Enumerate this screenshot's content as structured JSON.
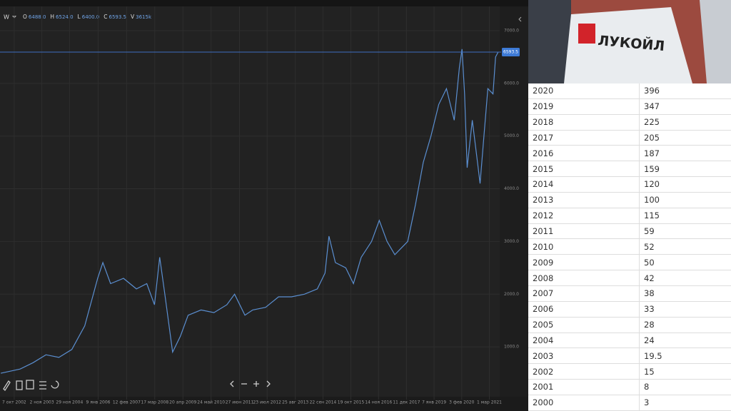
{
  "chart_data": {
    "type": "line",
    "legend": {
      "symbol": "W",
      "items": [
        {
          "key": "O",
          "value": "6488.0"
        },
        {
          "key": "H",
          "value": "6524.0"
        },
        {
          "key": "L",
          "value": "6400.0"
        },
        {
          "key": "C",
          "value": "6593.5"
        },
        {
          "key": "V",
          "value": "3615k"
        }
      ]
    },
    "price_label": {
      "value": 6593.5,
      "label": "6593.5"
    },
    "xlim": [
      2002.22,
      2021.56
    ],
    "ylim": [
      0,
      7460
    ],
    "xticks": [
      {
        "value": 2002.77,
        "label": "7 окт 2002"
      },
      {
        "value": 2003.84,
        "label": "2 ноя 2003"
      },
      {
        "value": 2004.91,
        "label": "29 ноя 2004"
      },
      {
        "value": 2006.02,
        "label": "9 янв 2006"
      },
      {
        "value": 2007.12,
        "label": "12 фев 2007"
      },
      {
        "value": 2008.21,
        "label": "17 мар 2008"
      },
      {
        "value": 2009.3,
        "label": "20 апр 2009"
      },
      {
        "value": 2010.39,
        "label": "24 май 2010"
      },
      {
        "value": 2011.49,
        "label": "27 июн 2011"
      },
      {
        "value": 2012.56,
        "label": "23 июл 2012"
      },
      {
        "value": 2013.65,
        "label": "25 авг 2013"
      },
      {
        "value": 2014.72,
        "label": "22 сен 2014"
      },
      {
        "value": 2015.8,
        "label": "19 окт 2015"
      },
      {
        "value": 2016.87,
        "label": "14 ноя 2016"
      },
      {
        "value": 2017.95,
        "label": "11 дек 2017"
      },
      {
        "value": 2019.02,
        "label": "7 янв 2019"
      },
      {
        "value": 2020.09,
        "label": "3 фев 2020"
      },
      {
        "value": 2021.16,
        "label": "1 мар 2021"
      }
    ],
    "yticks": [
      {
        "value": 1000,
        "label": "1000.0"
      },
      {
        "value": 2000,
        "label": "2000.0"
      },
      {
        "value": 3000,
        "label": "3000.0"
      },
      {
        "value": 4000,
        "label": "4000.0"
      },
      {
        "value": 5000,
        "label": "5000.0"
      },
      {
        "value": 6000,
        "label": "6000.0"
      },
      {
        "value": 7000,
        "label": "7000.0"
      }
    ],
    "grid": true,
    "color": "#5b8fd1",
    "x": [
      2002.25,
      2003.0,
      2003.5,
      2004.0,
      2004.5,
      2005.0,
      2005.5,
      2006.0,
      2006.2,
      2006.5,
      2007.0,
      2007.5,
      2007.9,
      2008.2,
      2008.4,
      2008.6,
      2008.9,
      2009.2,
      2009.5,
      2010.0,
      2010.5,
      2011.0,
      2011.3,
      2011.7,
      2012.0,
      2012.5,
      2013.0,
      2013.5,
      2014.0,
      2014.5,
      2014.8,
      2014.95,
      2015.2,
      2015.6,
      2015.9,
      2016.2,
      2016.6,
      2016.9,
      2017.2,
      2017.5,
      2018.0,
      2018.3,
      2018.6,
      2018.9,
      2019.2,
      2019.5,
      2019.8,
      2020.0,
      2020.1,
      2020.2,
      2020.3,
      2020.5,
      2020.7,
      2020.8,
      2020.95,
      2021.1,
      2021.3,
      2021.4,
      2021.5
    ],
    "values": [
      500,
      580,
      700,
      850,
      800,
      950,
      1400,
      2300,
      2600,
      2200,
      2300,
      2100,
      2200,
      1800,
      2700,
      2000,
      900,
      1200,
      1600,
      1700,
      1650,
      1800,
      2000,
      1600,
      1700,
      1750,
      1950,
      1950,
      2000,
      2100,
      2400,
      3100,
      2600,
      2500,
      2200,
      2700,
      3000,
      3400,
      3000,
      2750,
      3000,
      3700,
      4500,
      5000,
      5600,
      5900,
      5300,
      6300,
      6650,
      5800,
      4400,
      5300,
      4500,
      4100,
      5000,
      5900,
      5800,
      6500,
      6593.5
    ]
  },
  "image": {
    "caption": "ЛУКОЙЛ"
  },
  "table": {
    "rows": [
      [
        "2020",
        "396"
      ],
      [
        "2019",
        "347"
      ],
      [
        "2018",
        "225"
      ],
      [
        "2017",
        "205"
      ],
      [
        "2016",
        "187"
      ],
      [
        "2015",
        "159"
      ],
      [
        "2014",
        "120"
      ],
      [
        "2013",
        "100"
      ],
      [
        "2012",
        "115"
      ],
      [
        "2011",
        "59"
      ],
      [
        "2010",
        "52"
      ],
      [
        "2009",
        "50"
      ],
      [
        "2008",
        "42"
      ],
      [
        "2007",
        "38"
      ],
      [
        "2006",
        "33"
      ],
      [
        "2005",
        "28"
      ],
      [
        "2004",
        "24"
      ],
      [
        "2003",
        "19.5"
      ],
      [
        "2002",
        "15"
      ],
      [
        "2001",
        "8"
      ],
      [
        "2000",
        "3"
      ]
    ]
  }
}
